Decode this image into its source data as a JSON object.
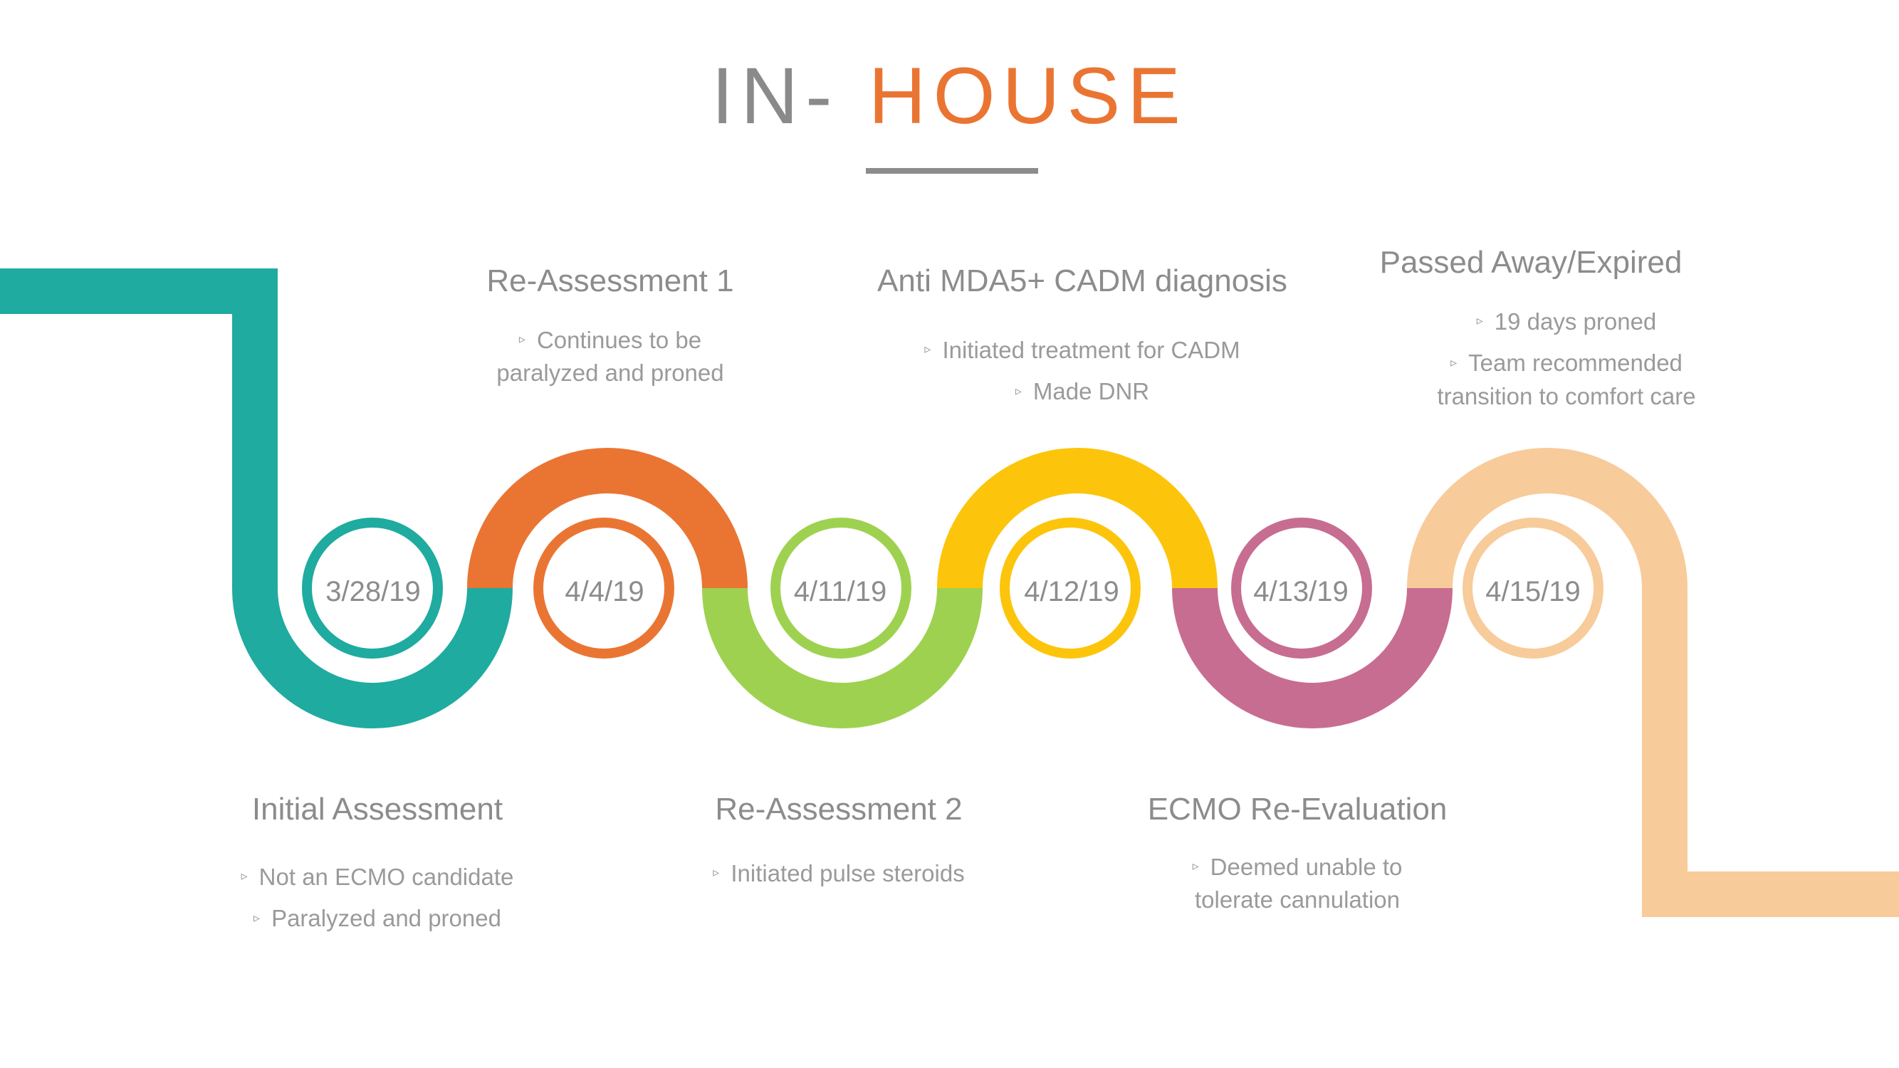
{
  "title": {
    "part1": "IN-",
    "part2": "HOUSE"
  },
  "colors": {
    "teal": "#1fab9f",
    "orange": "#ea7533",
    "green": "#9fd150",
    "yellow": "#fcc50b",
    "pink": "#c76d91",
    "peach": "#f8cb9a",
    "text": "#8c8c8c"
  },
  "bullet_glyph": "▹",
  "events": [
    {
      "date": "3/28/19",
      "title": "Initial Assessment",
      "position": "below",
      "bullets": [
        "Not an ECMO candidate",
        "Paralyzed and proned"
      ]
    },
    {
      "date": "4/4/19",
      "title": "Re-Assessment 1",
      "position": "above",
      "bullets": [
        "Continues to be paralyzed and proned"
      ]
    },
    {
      "date": "4/11/19",
      "title": "Re-Assessment 2",
      "position": "below",
      "bullets": [
        "Initiated pulse steroids"
      ]
    },
    {
      "date": "4/12/19",
      "title": "Anti MDA5+ CADM diagnosis",
      "position": "above",
      "bullets": [
        "Initiated treatment for CADM",
        "Made DNR"
      ]
    },
    {
      "date": "4/13/19",
      "title": "ECMO Re-Evaluation",
      "position": "below",
      "bullets": [
        "Deemed unable to tolerate cannulation"
      ]
    },
    {
      "date": "4/15/19",
      "title": "Passed Away/Expired",
      "position": "above",
      "bullets": [
        "19 days proned",
        "Team recommended transition to comfort care"
      ]
    }
  ]
}
